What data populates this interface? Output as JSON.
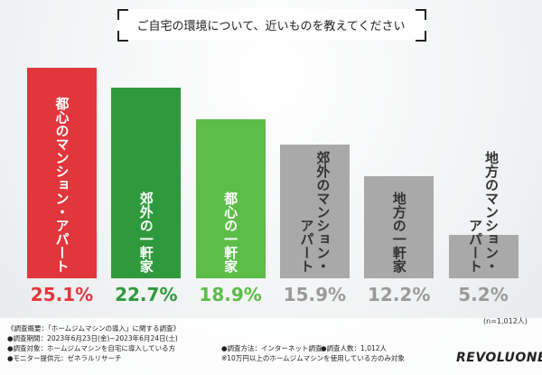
{
  "chart_data": {
    "type": "bar",
    "title": "ご自宅の環境について、近いものを教えてください",
    "categories": [
      "都心のマンション・アパート",
      "郊外の一軒家",
      "都心の一軒家",
      "郊外のマンション・アパート",
      "地方の一軒家",
      "地方のマンション・アパート"
    ],
    "values": [
      25.1,
      22.7,
      18.9,
      15.9,
      12.2,
      5.2
    ],
    "value_labels": [
      "25.1%",
      "22.7%",
      "18.9%",
      "15.9%",
      "12.2%",
      "5.2%"
    ],
    "colors": [
      "#e1363c",
      "#2f9a3c",
      "#5cbd48",
      "#a9a9a9",
      "#a9a9a9",
      "#a9a9a9"
    ],
    "label_colors": [
      "#e1363c",
      "#2f9a3c",
      "#5cbd48",
      "#9a9a9a",
      "#9a9a9a",
      "#9a9a9a"
    ],
    "note": "(n=1,012人)",
    "footer": [
      "《調査概要：「ホームジムマシンの導入」に関する調査》",
      "●調査期間：2023年6月23日(金)~2023年6月24日(土)",
      "●調査対象：ホームジムマシンを自宅に導入している方",
      "●モニター提供元：ゼネラルリサーチ",
      "●調査方法：インターネット調査",
      "●調査人数：1,012人",
      "※10万円以上のホームジムマシンを使用している方のみ対象"
    ],
    "logo": "REVOLUONE"
  }
}
